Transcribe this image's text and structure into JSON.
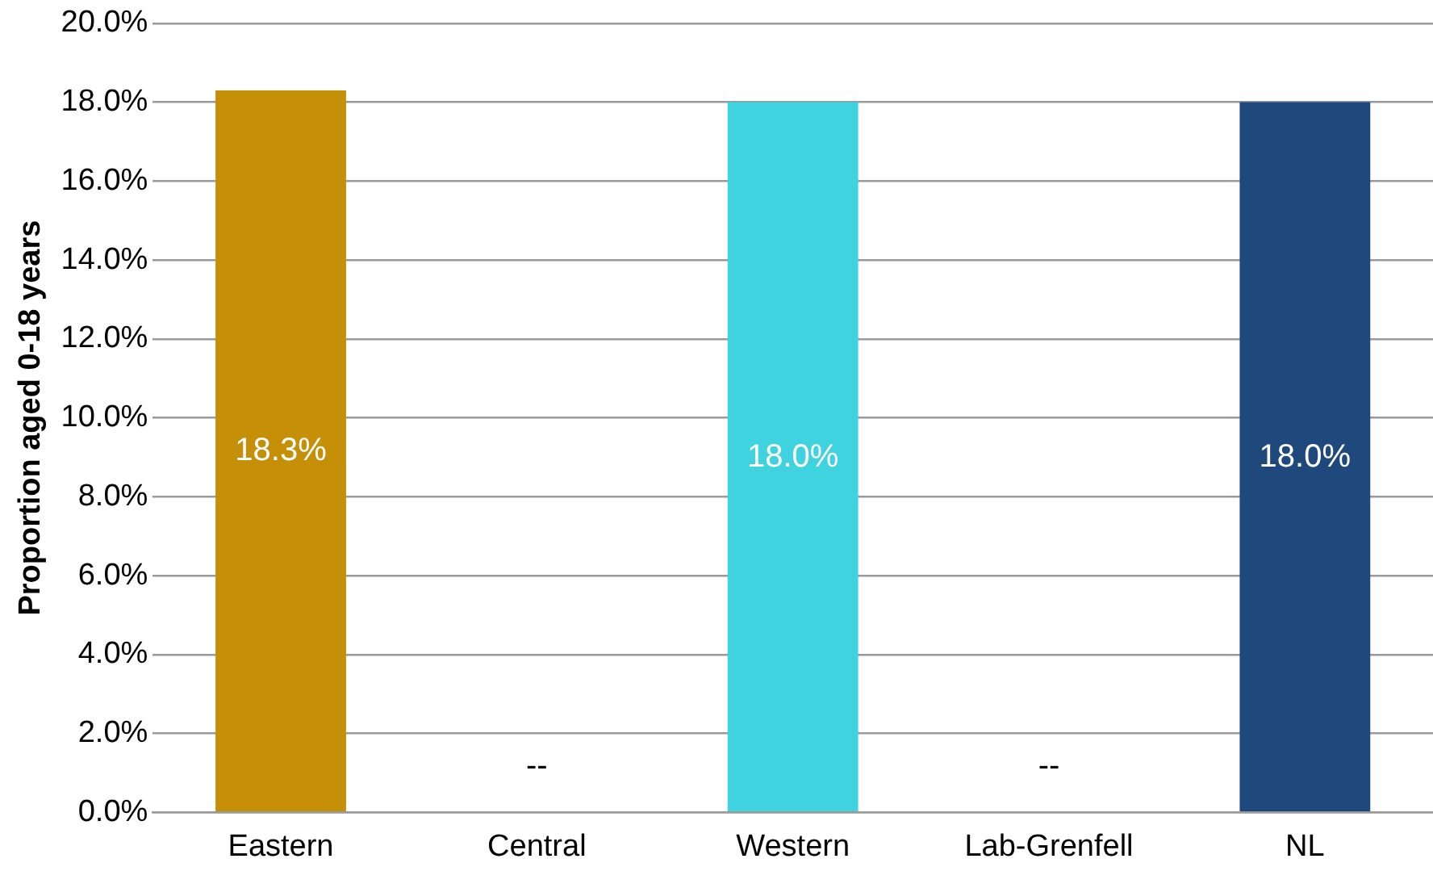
{
  "chart_data": {
    "type": "bar",
    "ylabel": "Proportion aged 0-18 years",
    "categories": [
      "Eastern",
      "Central",
      "Western",
      "Lab-Grenfell",
      "NL"
    ],
    "values": [
      18.3,
      null,
      18.0,
      null,
      18.0
    ],
    "colors": [
      "#c58f08",
      null,
      "#3fd3e0",
      null,
      "#1f497d"
    ],
    "value_labels": [
      "18.3%",
      "--",
      "18.0%",
      "--",
      "18.0%"
    ],
    "ylim": [
      0,
      20
    ],
    "yticks": [
      {
        "value": 0,
        "label": "0.0%"
      },
      {
        "value": 2,
        "label": "2.0%"
      },
      {
        "value": 4,
        "label": "4.0%"
      },
      {
        "value": 6,
        "label": "6.0%"
      },
      {
        "value": 8,
        "label": "8.0%"
      },
      {
        "value": 10,
        "label": "10.0%"
      },
      {
        "value": 12,
        "label": "12.0%"
      },
      {
        "value": 14,
        "label": "14.0%"
      },
      {
        "value": 16,
        "label": "16.0%"
      },
      {
        "value": 18,
        "label": "18.0%"
      },
      {
        "value": 20,
        "label": "20.0%"
      }
    ],
    "grid": "y"
  }
}
